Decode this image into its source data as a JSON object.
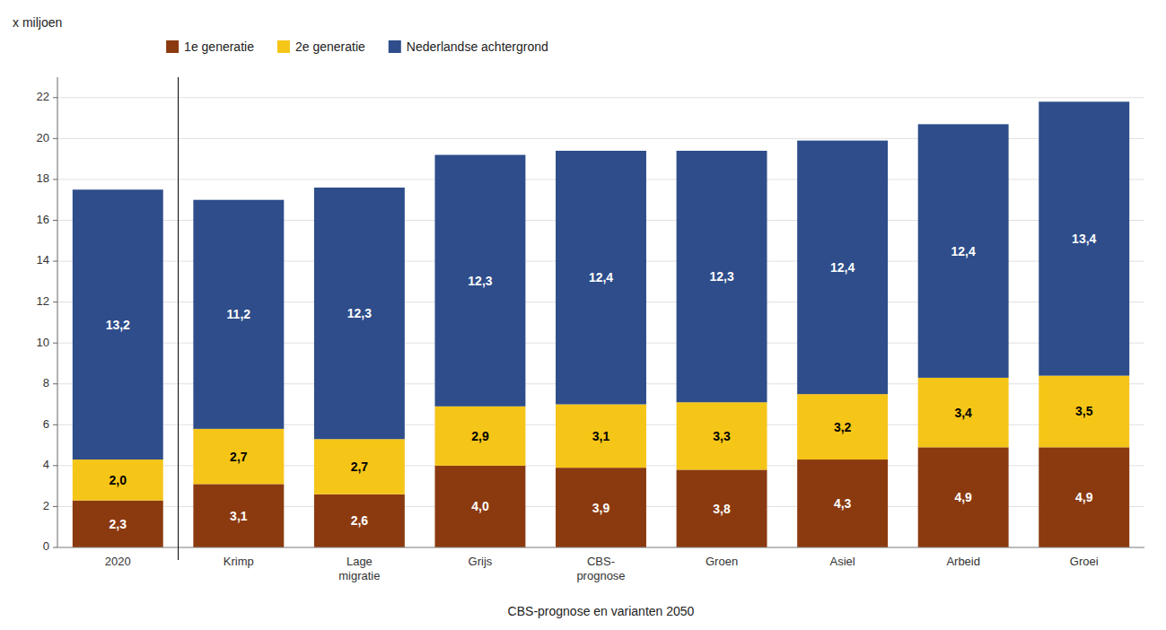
{
  "chart_data": {
    "type": "bar",
    "stacked": true,
    "data_labels": true,
    "grid": true,
    "legend": "top",
    "x_label": "CBS-prognose en varianten 2050",
    "y_label": "x miljoen",
    "categories": [
      "2020",
      "Krimp",
      "Lage\nmigratie",
      "Grijs",
      "CBS-\nprognose",
      "Groen",
      "Asiel",
      "Arbeid",
      "Groei"
    ],
    "series": [
      {
        "name": "1e generatie",
        "color": "#8B3A0F",
        "values": [
          2.3,
          3.1,
          2.6,
          4.0,
          3.9,
          3.8,
          4.3,
          4.9,
          4.9
        ],
        "value_labels": [
          "2,3",
          "3,1",
          "2,6",
          "4,0",
          "3,9",
          "3,8",
          "4,3",
          "4,9",
          "4,9"
        ]
      },
      {
        "name": "2e generatie",
        "color": "#F5C518",
        "values": [
          2.0,
          2.7,
          2.7,
          2.9,
          3.1,
          3.3,
          3.2,
          3.4,
          3.5
        ],
        "value_labels": [
          "2,0",
          "2,7",
          "2,7",
          "2,9",
          "3,1",
          "3,3",
          "3,2",
          "3,4",
          "3,5"
        ]
      },
      {
        "name": "Nederlandse achtergrond",
        "color": "#2E4D8A",
        "values": [
          13.2,
          11.2,
          12.3,
          12.3,
          12.4,
          12.3,
          12.4,
          12.4,
          13.4
        ],
        "value_labels": [
          "13,2",
          "11,2",
          "12,3",
          "12,3",
          "12,4",
          "12,3",
          "12,4",
          "12,4",
          "13,4"
        ]
      }
    ],
    "ylim": [
      0,
      23
    ],
    "yticks": [
      0,
      2,
      4,
      6,
      8,
      10,
      12,
      14,
      16,
      18,
      20,
      22
    ]
  }
}
